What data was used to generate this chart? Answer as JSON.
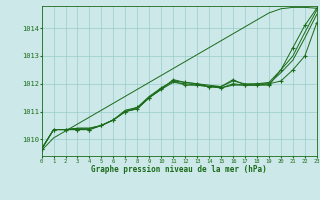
{
  "bg_color": "#cce8e8",
  "grid_color": "#99cccc",
  "line_color": "#1a6b1a",
  "marker_color": "#1a6b1a",
  "xlabel": "Graphe pression niveau de la mer (hPa)",
  "xlabel_color": "#1a6b1a",
  "tick_color": "#1a6b1a",
  "xmin": 0,
  "xmax": 23,
  "ymin": 1009.4,
  "ymax": 1014.8,
  "yticks": [
    1010,
    1011,
    1012,
    1013,
    1014
  ],
  "xticks": [
    0,
    1,
    2,
    3,
    4,
    5,
    6,
    7,
    8,
    9,
    10,
    11,
    12,
    13,
    14,
    15,
    16,
    17,
    18,
    19,
    20,
    21,
    22,
    23
  ],
  "series_smooth_diagonal": [
    1009.6,
    1010.05,
    1010.3,
    1010.55,
    1010.8,
    1011.05,
    1011.3,
    1011.55,
    1011.8,
    1012.05,
    1012.3,
    1012.55,
    1012.8,
    1013.05,
    1013.3,
    1013.55,
    1013.8,
    1014.05,
    1014.3,
    1014.55,
    1014.7,
    1014.75,
    1014.75,
    1014.72
  ],
  "series_with_markers_1": [
    1009.65,
    1010.35,
    1010.35,
    1010.35,
    1010.35,
    1010.5,
    1010.7,
    1011.0,
    1011.15,
    1011.5,
    1011.8,
    1012.15,
    1012.05,
    1012.0,
    1011.9,
    1011.9,
    1012.15,
    1011.95,
    1011.95,
    1011.95,
    1012.5,
    1013.3,
    1014.1,
    1014.72
  ],
  "series_with_markers_2": [
    1009.65,
    1010.35,
    1010.35,
    1010.35,
    1010.35,
    1010.5,
    1010.7,
    1011.0,
    1011.1,
    1011.5,
    1011.85,
    1012.1,
    1011.95,
    1011.95,
    1011.9,
    1011.85,
    1012.0,
    1011.95,
    1012.0,
    1012.0,
    1012.1,
    1012.5,
    1013.0,
    1014.2
  ],
  "series_smooth_lower": [
    1009.65,
    1010.35,
    1010.35,
    1010.4,
    1010.4,
    1010.5,
    1010.7,
    1011.0,
    1011.1,
    1011.5,
    1011.8,
    1012.05,
    1012.0,
    1011.95,
    1011.9,
    1011.85,
    1011.95,
    1011.95,
    1011.95,
    1012.0,
    1012.4,
    1012.85,
    1013.65,
    1014.5
  ],
  "series_smooth_lower2": [
    1009.65,
    1010.35,
    1010.35,
    1010.4,
    1010.4,
    1010.5,
    1010.7,
    1011.05,
    1011.15,
    1011.55,
    1011.85,
    1012.1,
    1012.05,
    1012.0,
    1011.95,
    1011.9,
    1012.1,
    1012.0,
    1012.0,
    1012.05,
    1012.5,
    1013.0,
    1013.85,
    1014.65
  ]
}
